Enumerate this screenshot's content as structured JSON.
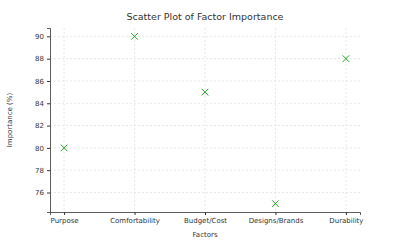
{
  "chart_data": {
    "type": "scatter",
    "title": "Scatter Plot of Factor Importance",
    "xlabel": "Factors",
    "ylabel": "Importance (%)",
    "categories": [
      "Purpose",
      "Comfortability",
      "Budget/Cost",
      "Designs/Brands",
      "Durability"
    ],
    "values": [
      80,
      90,
      85,
      75,
      88
    ],
    "color": "#2ca02c",
    "marker": "x",
    "ylim": [
      74.25,
      90.75
    ],
    "yticks": [
      76,
      78,
      80,
      82,
      84,
      86,
      88,
      90
    ],
    "grid": true
  }
}
